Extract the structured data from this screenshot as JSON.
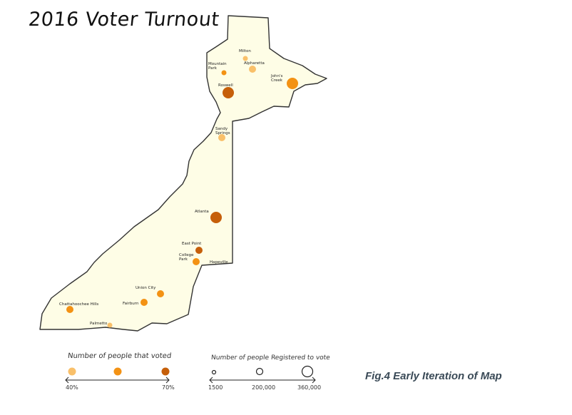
{
  "title": "2016 Voter Turnout",
  "caption": "Fig.4 Early Iteration of Map",
  "colors": {
    "land": "#fefde6",
    "outline": "#333333",
    "turnout_low": "#f9c06a",
    "turnout_mid": "#f39214",
    "turnout_high": "#c65f0a"
  },
  "places": [
    {
      "name": "Milton",
      "turnout": "low",
      "registered": "small"
    },
    {
      "name": "Mountain Park",
      "turnout": "mid",
      "registered": "small"
    },
    {
      "name": "Alpharetta",
      "turnout": "low",
      "registered": "medium"
    },
    {
      "name": "John's Creek",
      "turnout": "mid",
      "registered": "large"
    },
    {
      "name": "Roswell",
      "turnout": "high",
      "registered": "large"
    },
    {
      "name": "Sandy Springs",
      "turnout": "low",
      "registered": "medium"
    },
    {
      "name": "Atlanta",
      "turnout": "high",
      "registered": "large"
    },
    {
      "name": "East Point",
      "turnout": "high",
      "registered": "medium"
    },
    {
      "name": "College Park",
      "turnout": "mid",
      "registered": "medium"
    },
    {
      "name": "Hapeville",
      "turnout": "",
      "registered": ""
    },
    {
      "name": "Union City",
      "turnout": "mid",
      "registered": "medium"
    },
    {
      "name": "Fairburn",
      "turnout": "mid",
      "registered": "medium"
    },
    {
      "name": "Chattahoochee Hills",
      "turnout": "mid",
      "registered": "medium"
    },
    {
      "name": "Palmetto",
      "turnout": "low",
      "registered": "small"
    }
  ],
  "legend_turnout": {
    "title": "Number of people that voted",
    "min_label": "40%",
    "max_label": "70%"
  },
  "legend_registered": {
    "title": "Number of people Registered to vote",
    "labels": [
      "1500",
      "200,000",
      "360,000"
    ]
  }
}
